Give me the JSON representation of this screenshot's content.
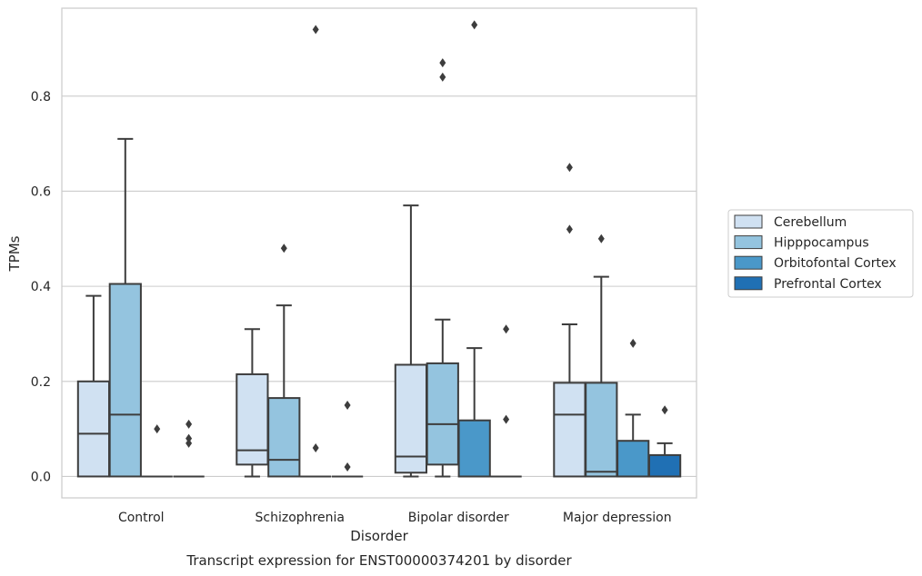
{
  "chart_data": {
    "type": "box",
    "caption": "Transcript expression for ENST00000374201 by disorder",
    "xlabel": "Disorder",
    "ylabel": "TPMs",
    "ylim": [
      -0.045,
      0.985
    ],
    "yticks": [
      "0.0",
      "0.2",
      "0.4",
      "0.6",
      "0.8"
    ],
    "grid": true,
    "legend_position": "right",
    "categories": [
      "Control",
      "Schizophrenia",
      "Bipolar disorder",
      "Major depression"
    ],
    "series": [
      {
        "name": "Cerebellum",
        "color": "#d0e1f2",
        "boxes": [
          {
            "whislo": 0.0,
            "q1": 0.0,
            "med": 0.09,
            "q3": 0.2,
            "whishi": 0.38,
            "fliers": []
          },
          {
            "whislo": 0.0,
            "q1": 0.025,
            "med": 0.055,
            "q3": 0.215,
            "whishi": 0.31,
            "fliers": []
          },
          {
            "whislo": 0.0,
            "q1": 0.008,
            "med": 0.042,
            "q3": 0.235,
            "whishi": 0.57,
            "fliers": []
          },
          {
            "whislo": 0.0,
            "q1": 0.0,
            "med": 0.13,
            "q3": 0.197,
            "whishi": 0.32,
            "fliers": [
              0.65,
              0.52
            ]
          }
        ]
      },
      {
        "name": "Hipppocampus",
        "color": "#94c4df",
        "boxes": [
          {
            "whislo": 0.0,
            "q1": 0.0,
            "med": 0.13,
            "q3": 0.405,
            "whishi": 0.71,
            "fliers": []
          },
          {
            "whislo": 0.0,
            "q1": 0.0,
            "med": 0.035,
            "q3": 0.165,
            "whishi": 0.36,
            "fliers": [
              0.48
            ]
          },
          {
            "whislo": 0.0,
            "q1": 0.025,
            "med": 0.11,
            "q3": 0.238,
            "whishi": 0.33,
            "fliers": [
              0.87,
              0.84
            ]
          },
          {
            "whislo": 0.0,
            "q1": 0.0,
            "med": 0.01,
            "q3": 0.197,
            "whishi": 0.42,
            "fliers": [
              0.5
            ]
          }
        ]
      },
      {
        "name": "Orbitofontal Cortex",
        "color": "#4a98c9",
        "boxes": [
          {
            "whislo": 0.0,
            "q1": 0.0,
            "med": 0.0,
            "q3": 0.0,
            "whishi": 0.0,
            "fliers": [
              0.1
            ]
          },
          {
            "whislo": 0.0,
            "q1": 0.0,
            "med": 0.0,
            "q3": 0.0,
            "whishi": 0.0,
            "fliers": [
              0.94,
              0.06
            ]
          },
          {
            "whislo": 0.0,
            "q1": 0.0,
            "med": 0.0,
            "q3": 0.118,
            "whishi": 0.27,
            "fliers": [
              0.95
            ]
          },
          {
            "whislo": 0.0,
            "q1": 0.0,
            "med": 0.0,
            "q3": 0.075,
            "whishi": 0.13,
            "fliers": [
              0.28
            ]
          }
        ]
      },
      {
        "name": "Prefrontal Cortex",
        "color": "#2070b4",
        "boxes": [
          {
            "whislo": 0.0,
            "q1": 0.0,
            "med": 0.0,
            "q3": 0.0,
            "whishi": 0.0,
            "fliers": [
              0.11,
              0.08,
              0.07
            ]
          },
          {
            "whislo": 0.0,
            "q1": 0.0,
            "med": 0.0,
            "q3": 0.0,
            "whishi": 0.0,
            "fliers": [
              0.15,
              0.02
            ]
          },
          {
            "whislo": 0.0,
            "q1": 0.0,
            "med": 0.0,
            "q3": 0.0,
            "whishi": 0.0,
            "fliers": [
              0.31,
              0.12
            ]
          },
          {
            "whislo": 0.0,
            "q1": 0.0,
            "med": 0.0,
            "q3": 0.045,
            "whishi": 0.07,
            "fliers": [
              0.14
            ]
          }
        ]
      }
    ]
  }
}
